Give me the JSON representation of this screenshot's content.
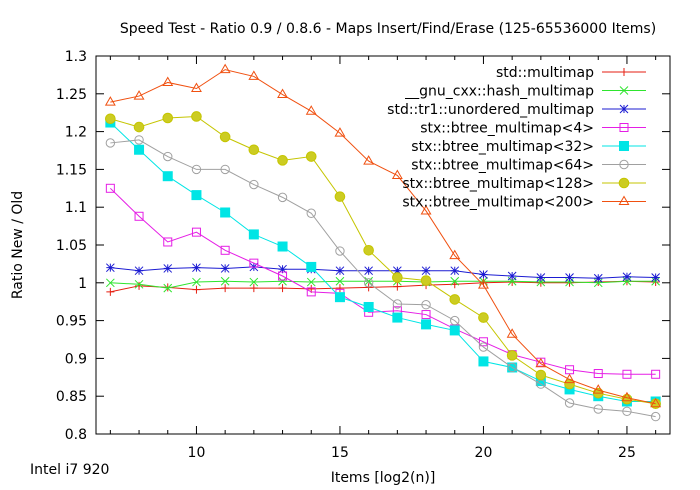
{
  "chart_data": {
    "type": "line",
    "title": "Speed Test - Ratio 0.9 / 0.8.6 - Maps Insert/Find/Erase (125-65536000 Items)",
    "xlabel": "Items [log2(n)]",
    "ylabel": "Ratio New / Old",
    "footnote": "Intel i7 920",
    "xlim": [
      6.5,
      26.5
    ],
    "ylim": [
      0.8,
      1.3
    ],
    "x_ticks": [
      10,
      15,
      20,
      25
    ],
    "y_ticks": [
      0.8,
      0.85,
      0.9,
      0.95,
      1,
      1.05,
      1.1,
      1.15,
      1.2,
      1.25,
      1.3
    ],
    "x_tick_labels": [
      "10",
      "15",
      "20",
      "25"
    ],
    "y_tick_labels": [
      "0.8",
      "0.85",
      "0.9",
      "0.95",
      "1",
      "1.05",
      "1.1",
      "1.15",
      "1.2",
      "1.25",
      "1.3"
    ],
    "legend_position": "top-right",
    "x": [
      7,
      8,
      9,
      10,
      11,
      12,
      13,
      14,
      15,
      16,
      17,
      18,
      19,
      20,
      21,
      22,
      23,
      24,
      25,
      26
    ],
    "series": [
      {
        "name": "std::multimap",
        "color": "#e51e10",
        "marker": "plus",
        "values": [
          0.988,
          0.996,
          0.994,
          0.991,
          0.993,
          0.993,
          0.993,
          0.992,
          0.993,
          0.994,
          0.995,
          0.997,
          0.998,
          1.0,
          1.001,
          1.0,
          1.0,
          1.001,
          1.002,
          1.001
        ]
      },
      {
        "name": "__gnu_cxx::hash_multimap",
        "color": "#2ee52e",
        "marker": "x",
        "values": [
          1.0,
          0.998,
          0.993,
          1.001,
          1.002,
          1.001,
          1.002,
          1.001,
          1.002,
          1.002,
          1.002,
          1.001,
          1.002,
          1.002,
          1.002,
          1.001,
          1.001,
          1.0,
          1.002,
          1.002
        ]
      },
      {
        "name": "std::tr1::unordered_multimap",
        "color": "#1b1bd2",
        "marker": "star",
        "values": [
          1.02,
          1.016,
          1.019,
          1.02,
          1.019,
          1.021,
          1.018,
          1.018,
          1.016,
          1.016,
          1.016,
          1.016,
          1.016,
          1.011,
          1.009,
          1.007,
          1.007,
          1.006,
          1.008,
          1.007
        ]
      },
      {
        "name": "stx::btree_multimap<4>",
        "color": "#e51ee5",
        "marker": "square-open",
        "values": [
          1.125,
          1.088,
          1.054,
          1.067,
          1.043,
          1.026,
          1.009,
          0.988,
          0.986,
          0.961,
          0.963,
          0.958,
          0.939,
          0.922,
          0.905,
          0.895,
          0.885,
          0.88,
          0.879,
          0.879
        ]
      },
      {
        "name": "stx::btree_multimap<32>",
        "color": "#00e5e5",
        "marker": "square-filled",
        "values": [
          1.212,
          1.176,
          1.141,
          1.116,
          1.093,
          1.064,
          1.048,
          1.021,
          0.981,
          0.968,
          0.954,
          0.945,
          0.937,
          0.896,
          0.888,
          0.87,
          0.859,
          0.85,
          0.843,
          0.843
        ]
      },
      {
        "name": "stx::btree_multimap<64>",
        "color": "#a0a0a0",
        "marker": "circle-open",
        "values": [
          1.185,
          1.189,
          1.167,
          1.15,
          1.15,
          1.13,
          1.113,
          1.092,
          1.042,
          1.0,
          0.972,
          0.971,
          0.95,
          0.915,
          0.888,
          0.866,
          0.841,
          0.833,
          0.83,
          0.823
        ]
      },
      {
        "name": "stx::btree_multimap<128>",
        "color": "#c5c500",
        "fill": "#cccc22",
        "marker": "circle-filled",
        "values": [
          1.217,
          1.206,
          1.218,
          1.22,
          1.193,
          1.176,
          1.162,
          1.167,
          1.114,
          1.043,
          1.007,
          1.003,
          0.978,
          0.954,
          0.904,
          0.878,
          0.866,
          0.854,
          0.846,
          0.84
        ]
      },
      {
        "name": "stx::btree_multimap<200>",
        "color": "#f05010",
        "marker": "triangle-open",
        "values": [
          1.239,
          1.247,
          1.265,
          1.257,
          1.282,
          1.273,
          1.249,
          1.227,
          1.198,
          1.161,
          1.142,
          1.095,
          1.036,
          0.997,
          0.932,
          0.893,
          0.872,
          0.858,
          0.848,
          0.84
        ]
      }
    ]
  }
}
